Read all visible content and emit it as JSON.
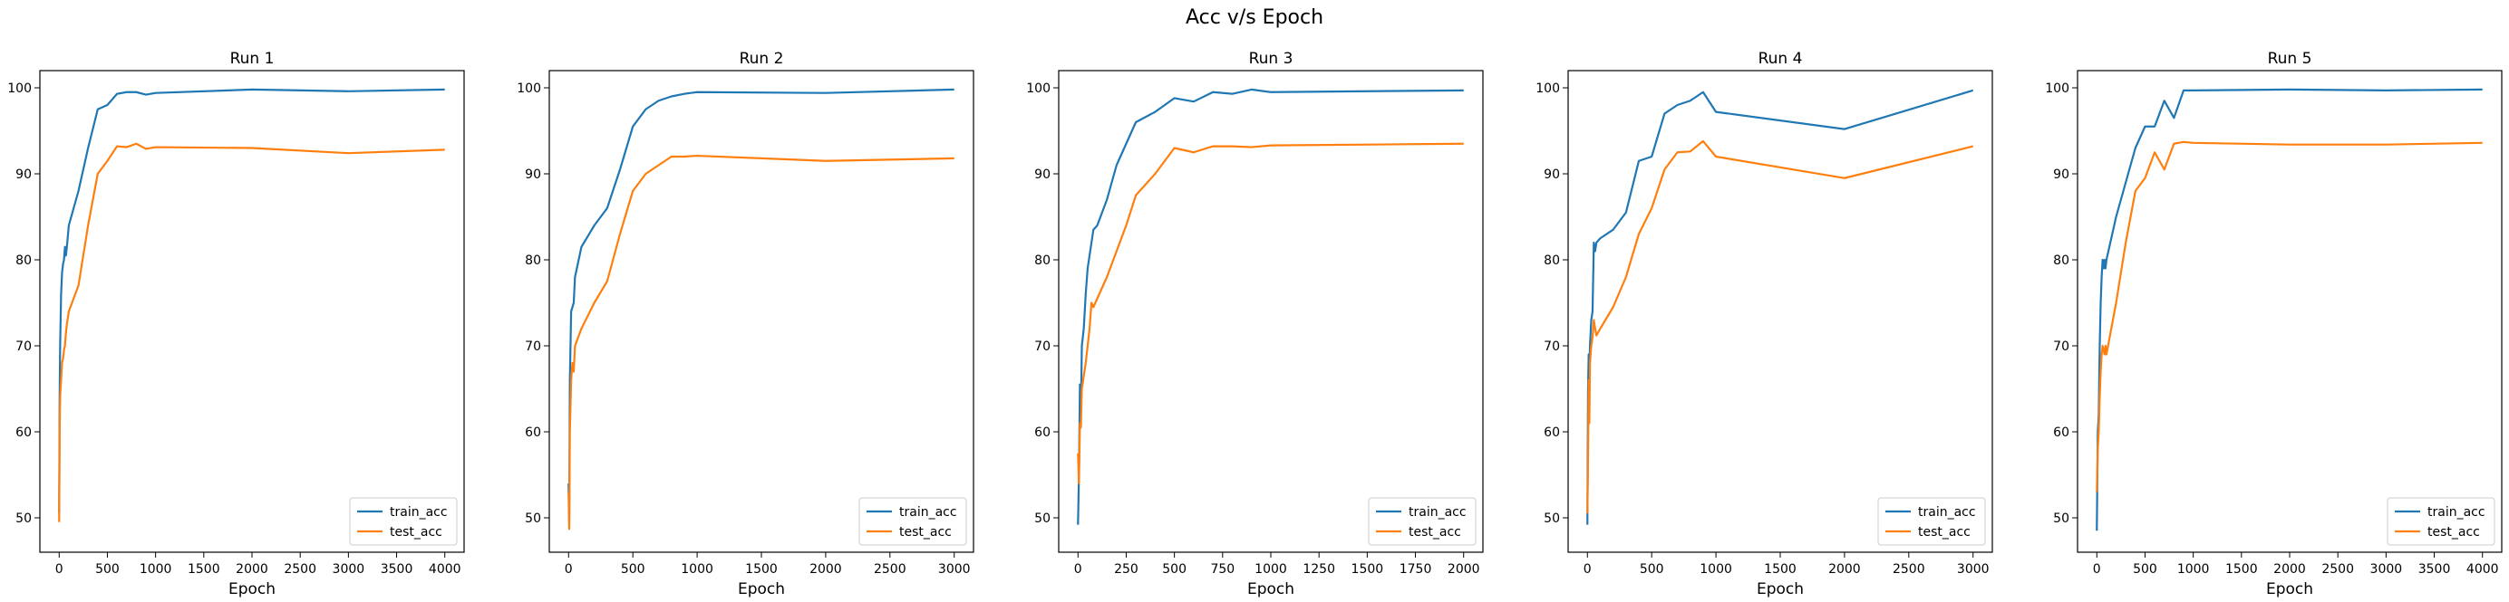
{
  "figure": {
    "suptitle": "Acc v/s Epoch"
  },
  "colors": {
    "train": "#1f77b4",
    "test": "#ff7f0e"
  },
  "chart_data": [
    {
      "type": "line",
      "title": "Run 1",
      "xlabel": "Epoch",
      "ylabel": "",
      "xlim": [
        -200,
        4200
      ],
      "ylim": [
        46,
        102
      ],
      "xticks": [
        0,
        500,
        1000,
        1500,
        2000,
        2500,
        3000,
        3500,
        4000
      ],
      "yticks": [
        50,
        60,
        70,
        80,
        90,
        100
      ],
      "legend": "lower-right",
      "series": [
        {
          "name": "train_acc",
          "x": [
            0,
            5,
            10,
            20,
            30,
            40,
            50,
            60,
            70,
            80,
            100,
            200,
            300,
            400,
            500,
            600,
            700,
            800,
            900,
            1000,
            2000,
            3000,
            4000
          ],
          "y": [
            50.5,
            64,
            70,
            76,
            78.5,
            79.5,
            80,
            81.5,
            80.5,
            81.5,
            84,
            88,
            93,
            97.5,
            98,
            99.3,
            99.5,
            99.5,
            99.2,
            99.4,
            99.8,
            99.6,
            99.8
          ]
        },
        {
          "name": "test_acc",
          "x": [
            0,
            5,
            10,
            20,
            30,
            40,
            50,
            60,
            70,
            80,
            100,
            200,
            300,
            400,
            500,
            600,
            700,
            800,
            900,
            1000,
            2000,
            3000,
            4000
          ],
          "y": [
            49.5,
            60,
            64,
            66,
            68,
            68.5,
            69.5,
            70,
            71.5,
            72.5,
            74,
            77,
            84,
            90,
            91.5,
            93.2,
            93.1,
            93.5,
            92.9,
            93.1,
            93.0,
            92.4,
            92.8
          ]
        }
      ]
    },
    {
      "type": "line",
      "title": "Run 2",
      "xlabel": "Epoch",
      "ylabel": "",
      "xlim": [
        -150,
        3150
      ],
      "ylim": [
        46,
        102
      ],
      "xticks": [
        0,
        500,
        1000,
        1500,
        2000,
        2500,
        3000
      ],
      "yticks": [
        50,
        60,
        70,
        80,
        90,
        100
      ],
      "legend": "lower-right",
      "series": [
        {
          "name": "train_acc",
          "x": [
            0,
            5,
            10,
            20,
            30,
            40,
            50,
            100,
            200,
            300,
            400,
            500,
            600,
            700,
            800,
            900,
            1000,
            2000,
            3000
          ],
          "y": [
            54,
            49.5,
            66,
            74,
            74.5,
            75,
            78,
            81.5,
            84,
            86,
            90.5,
            95.5,
            97.5,
            98.5,
            99,
            99.3,
            99.5,
            99.4,
            99.8
          ]
        },
        {
          "name": "test_acc",
          "x": [
            0,
            5,
            10,
            20,
            30,
            40,
            50,
            100,
            200,
            300,
            400,
            500,
            600,
            700,
            800,
            900,
            1000,
            2000,
            3000
          ],
          "y": [
            53,
            48.7,
            60,
            66,
            68,
            67,
            70,
            72,
            75,
            77.5,
            83,
            88,
            90,
            91,
            92,
            92,
            92.1,
            91.5,
            91.8
          ]
        }
      ]
    },
    {
      "type": "line",
      "title": "Run 3",
      "xlabel": "Epoch",
      "ylabel": "",
      "xlim": [
        -100,
        2100
      ],
      "ylim": [
        46,
        102
      ],
      "xticks": [
        0,
        250,
        500,
        750,
        1000,
        1250,
        1500,
        1750,
        2000
      ],
      "yticks": [
        50,
        60,
        70,
        80,
        90,
        100
      ],
      "legend": "lower-right",
      "series": [
        {
          "name": "train_acc",
          "x": [
            0,
            5,
            10,
            15,
            20,
            30,
            40,
            50,
            60,
            70,
            80,
            100,
            150,
            200,
            250,
            300,
            400,
            500,
            600,
            700,
            800,
            900,
            1000,
            2000
          ],
          "y": [
            49.2,
            55,
            65.5,
            62,
            70,
            72,
            76,
            79,
            80.5,
            82,
            83.5,
            84,
            87,
            91,
            93.5,
            96,
            97.2,
            98.8,
            98.4,
            99.5,
            99.3,
            99.8,
            99.5,
            99.7
          ]
        },
        {
          "name": "test_acc",
          "x": [
            0,
            5,
            10,
            15,
            20,
            30,
            40,
            50,
            60,
            70,
            80,
            100,
            150,
            200,
            250,
            300,
            400,
            500,
            600,
            700,
            800,
            900,
            1000,
            2000
          ],
          "y": [
            57.5,
            54,
            61,
            60.5,
            65,
            66.5,
            68,
            70,
            72,
            75,
            74.5,
            75.5,
            78,
            81,
            84,
            87.5,
            90,
            93,
            92.5,
            93.2,
            93.2,
            93.1,
            93.3,
            93.5
          ]
        }
      ]
    },
    {
      "type": "line",
      "title": "Run 4",
      "xlabel": "Epoch",
      "ylabel": "",
      "xlim": [
        -150,
        3150
      ],
      "ylim": [
        46,
        102
      ],
      "xticks": [
        0,
        500,
        1000,
        1500,
        2000,
        2500,
        3000
      ],
      "yticks": [
        50,
        60,
        70,
        80,
        90,
        100
      ],
      "legend": "lower-right",
      "series": [
        {
          "name": "train_acc",
          "x": [
            0,
            5,
            10,
            15,
            20,
            30,
            40,
            50,
            60,
            70,
            100,
            200,
            300,
            400,
            500,
            600,
            700,
            800,
            900,
            1000,
            2000,
            3000
          ],
          "y": [
            49.2,
            65,
            69,
            67,
            70,
            73,
            74,
            82,
            81,
            82,
            82.5,
            83.5,
            85.5,
            91.5,
            92,
            97,
            98,
            98.5,
            99.5,
            97.2,
            95.2,
            99.7
          ]
        },
        {
          "name": "test_acc",
          "x": [
            0,
            5,
            10,
            15,
            20,
            30,
            40,
            50,
            60,
            70,
            100,
            200,
            300,
            400,
            500,
            600,
            700,
            800,
            900,
            1000,
            2000,
            3000
          ],
          "y": [
            50.5,
            57,
            66,
            61,
            68,
            70,
            71,
            73,
            72,
            71.2,
            72,
            74.5,
            78,
            83,
            86,
            90.5,
            92.5,
            92.6,
            93.8,
            92,
            89.5,
            93.2
          ]
        }
      ]
    },
    {
      "type": "line",
      "title": "Run 5",
      "xlabel": "Epoch",
      "ylabel": "",
      "xlim": [
        -200,
        4200
      ],
      "ylim": [
        46,
        102
      ],
      "xticks": [
        0,
        500,
        1000,
        1500,
        2000,
        2500,
        3000,
        3500,
        4000
      ],
      "yticks": [
        50,
        60,
        70,
        80,
        90,
        100
      ],
      "legend": "lower-right",
      "series": [
        {
          "name": "train_acc",
          "x": [
            0,
            10,
            20,
            30,
            40,
            50,
            60,
            70,
            80,
            90,
            100,
            200,
            300,
            400,
            500,
            600,
            700,
            800,
            900,
            1000,
            2000,
            3000,
            4000
          ],
          "y": [
            48.5,
            60,
            62,
            70,
            75,
            78,
            80,
            79,
            80,
            79,
            80,
            85,
            89,
            93,
            95.5,
            95.5,
            98.5,
            96.5,
            99.7,
            99.7,
            99.8,
            99.7,
            99.8
          ]
        },
        {
          "name": "test_acc",
          "x": [
            0,
            10,
            20,
            30,
            40,
            50,
            60,
            70,
            80,
            90,
            100,
            200,
            300,
            400,
            500,
            600,
            700,
            800,
            900,
            1000,
            2000,
            3000,
            4000
          ],
          "y": [
            53,
            58,
            60,
            64,
            67,
            69,
            70,
            69.5,
            69,
            70,
            69,
            75,
            82,
            88,
            89.5,
            92.5,
            90.5,
            93.5,
            93.7,
            93.6,
            93.4,
            93.4,
            93.6
          ]
        }
      ]
    }
  ]
}
